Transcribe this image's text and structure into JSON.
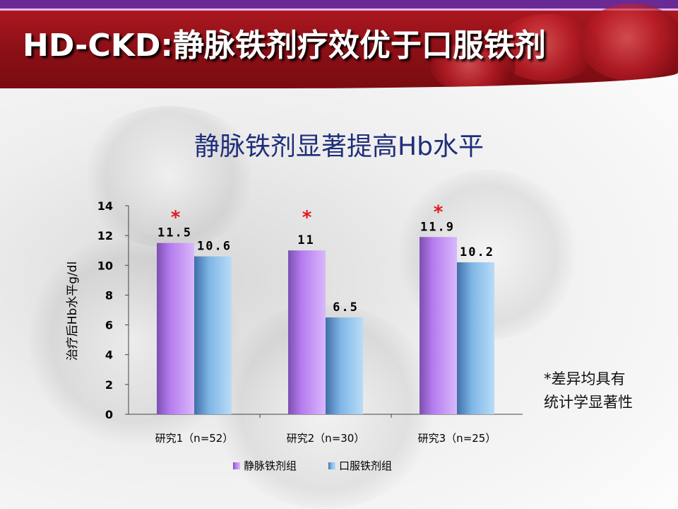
{
  "slide": {
    "title": "HD-CKD:静脉铁剂疗效优于口服铁剂",
    "footnote_line1": "*差异均具有",
    "footnote_line2": "统计学显著性"
  },
  "colors": {
    "series_iv": "#b57bee",
    "series_oral": "#7fb6e6",
    "significance": "#e3191c",
    "chart_title": "#1f2e7a",
    "header_red": "#9b1219",
    "header_purple": "#6a2a95"
  },
  "chart_data": {
    "type": "bar",
    "title": "静脉铁剂显著提高Hb水平",
    "ylabel": "治疗后Hb水平g/dl",
    "xlabel": "",
    "ylim": [
      0,
      14
    ],
    "yticks": [
      0,
      2,
      4,
      6,
      8,
      10,
      12,
      14
    ],
    "categories": [
      "研究1（n=52）",
      "研究2（n=30）",
      "研究3（n=25）"
    ],
    "series": [
      {
        "name": "静脉铁剂组",
        "values": [
          11.5,
          11,
          11.9
        ],
        "labels": [
          "11.5",
          "11",
          "11.9"
        ],
        "color": "#b57bee"
      },
      {
        "name": "口服铁剂组",
        "values": [
          10.6,
          6.5,
          10.2
        ],
        "labels": [
          "10.6",
          "6.5",
          "10.2"
        ],
        "color": "#7fb6e6"
      }
    ],
    "significance_marker": "*",
    "significant": [
      true,
      true,
      true
    ],
    "legend_position": "bottom",
    "grid": false
  }
}
